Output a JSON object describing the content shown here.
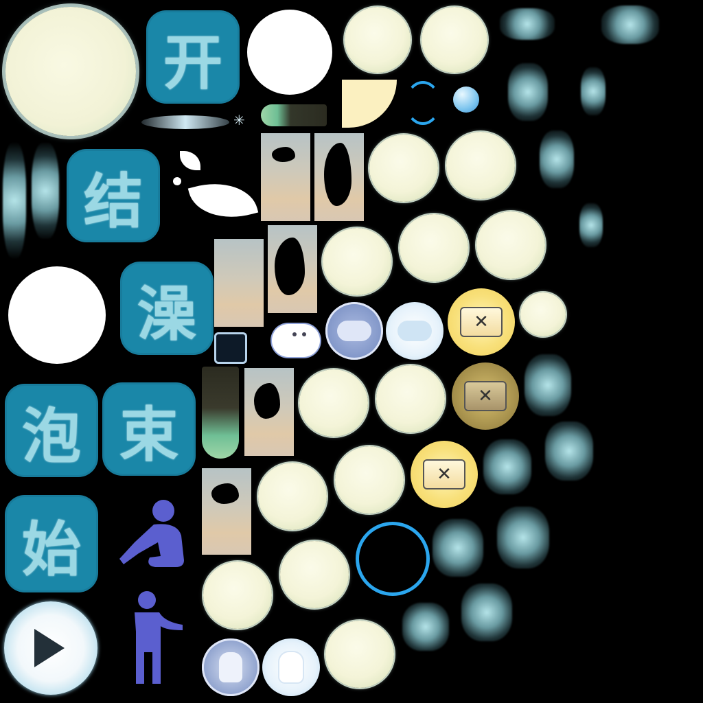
{
  "sheet": {
    "glyphs": {
      "kai": "开",
      "jie": "结",
      "ying": "澡",
      "pao": "泡",
      "shu": "束",
      "shi": "始"
    },
    "close_mark": "✕",
    "colors": {
      "background": "#000000",
      "kanji_tile": "#1a87a8",
      "kanji_text": "#9bd8e4",
      "bubble_fill": "#f4f4d8",
      "bubble_rim": "#cfe0cd",
      "ring_blue": "#2ba6ee",
      "person_purple": "#5b5fcf",
      "gold": "#f2d25b",
      "disc_blue": "#6e86bd"
    }
  }
}
